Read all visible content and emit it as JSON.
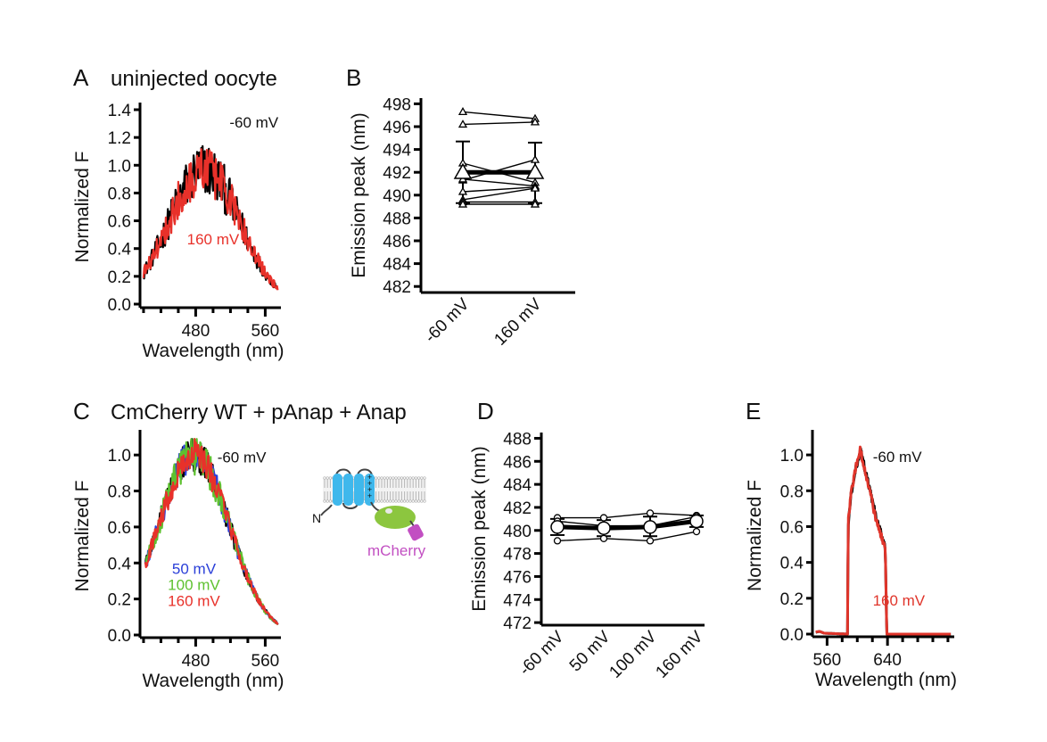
{
  "figure": {
    "panels": {
      "A": {
        "letter": "A",
        "title": "uninjected oocyte"
      },
      "B": {
        "letter": "B"
      },
      "C": {
        "letter": "C",
        "title": "CmCherry WT + pAnap + Anap"
      },
      "D": {
        "letter": "D"
      },
      "E": {
        "letter": "E"
      }
    },
    "schematic": {
      "n_terminus_label": "N",
      "fp_label": "mCherry",
      "charge_symbols": "+ + + +",
      "colors": {
        "helix": "#3fb8ec",
        "anap_domain": "#8cc63f",
        "mcherry": "#c24fc2",
        "membrane": "#b5b5b5"
      }
    }
  },
  "chart_data": [
    {
      "id": "A",
      "type": "line",
      "title": "uninjected oocyte",
      "xlabel": "Wavelength (nm)",
      "ylabel": "Normalized F",
      "xlim": [
        418,
        576
      ],
      "ylim": [
        0,
        1.4
      ],
      "xticks_major": [
        480,
        560
      ],
      "xticks_minor": [
        420,
        440,
        460,
        480,
        500,
        520,
        540,
        560
      ],
      "yticks": [
        "0.0",
        "0.2",
        "0.4",
        "0.6",
        "0.8",
        "1.0",
        "1.2",
        "1.4"
      ],
      "yticks_values": [
        0,
        0.2,
        0.4,
        0.6,
        0.8,
        1.0,
        1.2,
        1.4
      ],
      "series": [
        {
          "name": "-60 mV",
          "color": "#000000",
          "peak_nm": 490,
          "width_nm": 55,
          "amplitude": 0.97,
          "baseline": 0.0,
          "noise": 0.13,
          "x_start": 420,
          "x_end": 575,
          "y_start": 0.2,
          "y_end": 0.28
        },
        {
          "name": "160 mV",
          "color": "#e8312a",
          "peak_nm": 490,
          "width_nm": 55,
          "amplitude": 0.97,
          "baseline": 0.0,
          "noise": 0.12,
          "x_start": 420,
          "x_end": 575,
          "y_start": 0.2,
          "y_end": 0.22
        }
      ],
      "annotations": [
        {
          "text": "-60 mV",
          "color": "#111111",
          "x": 547,
          "y": 1.27
        },
        {
          "text": "160 mV",
          "color": "#e8312a",
          "x": 500,
          "y": 0.43
        }
      ]
    },
    {
      "id": "B",
      "type": "scatter",
      "ylabel": "Emission peak (nm)",
      "categories": [
        "-60 mV",
        "160 mV"
      ],
      "ylim": [
        481,
        498.5
      ],
      "yticks": [
        "482",
        "484",
        "486",
        "488",
        "490",
        "492",
        "494",
        "496",
        "498"
      ],
      "yticks_values": [
        482,
        484,
        486,
        488,
        490,
        492,
        494,
        496,
        498
      ],
      "marker": "triangle",
      "individual": [
        [
          497.3,
          496.7
        ],
        [
          496.2,
          496.4
        ],
        [
          492.8,
          491.1
        ],
        [
          491.3,
          493.1
        ],
        [
          491.4,
          490.8
        ],
        [
          490.3,
          490.7
        ],
        [
          489.6,
          490.6
        ],
        [
          489.4,
          489.4
        ],
        [
          489.2,
          489.2
        ]
      ],
      "mean": [
        492.0,
        492.0
      ],
      "sem_upper": [
        494.7,
        494.6
      ],
      "sem_lower": [
        489.3,
        489.3
      ]
    },
    {
      "id": "C",
      "type": "line",
      "title": "CmCherry WT + pAnap + Anap",
      "xlabel": "Wavelength (nm)",
      "ylabel": "Normalized F",
      "xlim": [
        418,
        576
      ],
      "ylim": [
        0,
        1.1
      ],
      "xticks_major": [
        480,
        560
      ],
      "xticks_minor": [
        420,
        440,
        460,
        480,
        500,
        520,
        540,
        560
      ],
      "yticks": [
        "0.0",
        "0.2",
        "0.4",
        "0.6",
        "0.8",
        "1.0"
      ],
      "yticks_values": [
        0,
        0.2,
        0.4,
        0.6,
        0.8,
        1.0
      ],
      "series": [
        {
          "name": "-60 mV",
          "color": "#000000",
          "peak_nm": 478,
          "width_nm": 55,
          "amplitude": 1.0,
          "noise": 0.06,
          "x_start": 422,
          "x_end": 575
        },
        {
          "name": "50 mV",
          "color": "#2a3fd8",
          "peak_nm": 478,
          "width_nm": 55,
          "amplitude": 1.0,
          "noise": 0.06,
          "x_start": 422,
          "x_end": 575
        },
        {
          "name": "100 mV",
          "color": "#5ec130",
          "peak_nm": 478,
          "width_nm": 55,
          "amplitude": 1.0,
          "noise": 0.07,
          "x_start": 422,
          "x_end": 575
        },
        {
          "name": "160 mV",
          "color": "#e8312a",
          "peak_nm": 478,
          "width_nm": 55,
          "amplitude": 1.0,
          "noise": 0.06,
          "x_start": 422,
          "x_end": 575
        }
      ],
      "annotations": [
        {
          "text": "-60 mV",
          "color": "#111111",
          "x": 533,
          "y": 0.96
        },
        {
          "text": "50 mV",
          "color": "#2a3fd8",
          "x": 478,
          "y": 0.34
        },
        {
          "text": "100 mV",
          "color": "#5ec130",
          "x": 478,
          "y": 0.25
        },
        {
          "text": "160 mV",
          "color": "#e8312a",
          "x": 478,
          "y": 0.16
        }
      ]
    },
    {
      "id": "D",
      "type": "scatter",
      "ylabel": "Emission peak (nm)",
      "categories": [
        "-60 mV",
        "50 mV",
        "100 mV",
        "160 mV"
      ],
      "ylim": [
        471,
        488.5
      ],
      "yticks": [
        "472",
        "474",
        "476",
        "478",
        "480",
        "482",
        "484",
        "486",
        "488"
      ],
      "yticks_values": [
        472,
        474,
        476,
        478,
        480,
        482,
        484,
        486,
        488
      ],
      "marker": "circle",
      "individual": [
        [
          481.1,
          481.1,
          481.5,
          481.3
        ],
        [
          480.8,
          480.4,
          480.4,
          481.2
        ],
        [
          479.1,
          479.3,
          479.1,
          479.9
        ]
      ],
      "mean": [
        480.3,
        480.2,
        480.3,
        480.8
      ],
      "sem_upper": [
        481.0,
        480.9,
        481.2,
        481.3
      ],
      "sem_lower": [
        479.6,
        479.5,
        479.5,
        480.3
      ]
    },
    {
      "id": "E",
      "type": "line",
      "xlabel": "Wavelength (nm)",
      "ylabel": "Normalized F",
      "xlim": [
        543,
        726
      ],
      "ylim": [
        0,
        1.1
      ],
      "xticks_major": [
        560,
        640
      ],
      "xticks_minor": [
        560,
        580,
        600,
        620,
        640,
        660,
        680,
        700,
        720
      ],
      "yticks": [
        "0.0",
        "0.2",
        "0.4",
        "0.6",
        "0.8",
        "1.0"
      ],
      "yticks_values": [
        0,
        0.2,
        0.4,
        0.6,
        0.8,
        1.0
      ],
      "series": [
        {
          "name": "-60 mV",
          "color": "#000000",
          "profile": [
            [
              545,
              0.01
            ],
            [
              550,
              0.015
            ],
            [
              556,
              0.005
            ],
            [
              587,
              0.0
            ],
            [
              588,
              0.62
            ],
            [
              592,
              0.78
            ],
            [
              598,
              0.92
            ],
            [
              604,
              1.03
            ],
            [
              608,
              0.96
            ],
            [
              614,
              0.85
            ],
            [
              620,
              0.74
            ],
            [
              626,
              0.63
            ],
            [
              634,
              0.53
            ],
            [
              637,
              0.49
            ],
            [
              639,
              0.0
            ],
            [
              724,
              0.0
            ]
          ]
        },
        {
          "name": "160 mV",
          "color": "#e0352b",
          "profile": [
            [
              545,
              0.012
            ],
            [
              550,
              0.015
            ],
            [
              556,
              0.005
            ],
            [
              587,
              0.0
            ],
            [
              588,
              0.63
            ],
            [
              592,
              0.79
            ],
            [
              598,
              0.93
            ],
            [
              604,
              1.03
            ],
            [
              608,
              0.95
            ],
            [
              614,
              0.84
            ],
            [
              620,
              0.73
            ],
            [
              626,
              0.62
            ],
            [
              634,
              0.52
            ],
            [
              637,
              0.49
            ],
            [
              639,
              0.0
            ],
            [
              724,
              0.0
            ]
          ]
        }
      ],
      "annotations": [
        {
          "text": "-60 mV",
          "color": "#111111",
          "x": 653,
          "y": 0.96
        },
        {
          "text": "160 mV",
          "color": "#e0352b",
          "x": 655,
          "y": 0.16
        }
      ]
    }
  ]
}
